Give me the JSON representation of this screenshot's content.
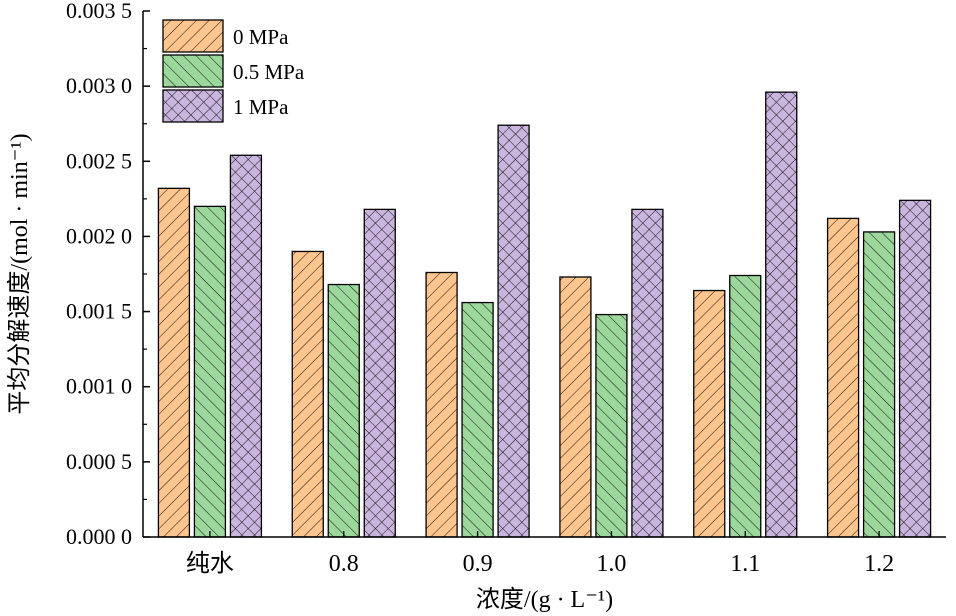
{
  "chart_data": {
    "type": "bar",
    "xlabel": "浓度/(g · L⁻¹)",
    "ylabel": "平均分解速度/(mol · min⁻¹)",
    "categories": [
      "纯水",
      "0.8",
      "0.9",
      "1.0",
      "1.1",
      "1.2"
    ],
    "ylim": [
      0,
      0.0035
    ],
    "yticks": [
      0,
      0.0005,
      0.001,
      0.0015,
      0.002,
      0.0025,
      0.003,
      0.0035
    ],
    "ytick_labels": [
      "0.000 0",
      "0.000 5",
      "0.001 0",
      "0.001 5",
      "0.002 0",
      "0.002 5",
      "0.003 0",
      "0.003 5"
    ],
    "grid": false,
    "legend_position": "top-left",
    "series": [
      {
        "name": "0 MPa",
        "values": [
          0.00232,
          0.0019,
          0.00176,
          0.00173,
          0.00164,
          0.00212
        ],
        "color": "#FFC58E",
        "hatch": "forward-diagonal"
      },
      {
        "name": "0.5 MPa",
        "values": [
          0.0022,
          0.00168,
          0.00156,
          0.00148,
          0.00174,
          0.00203
        ],
        "color": "#9CD79C",
        "hatch": "back-diagonal"
      },
      {
        "name": "1 MPa",
        "values": [
          0.00254,
          0.00218,
          0.00274,
          0.00218,
          0.00296,
          0.00224
        ],
        "color": "#C9B5DE",
        "hatch": "cross"
      }
    ]
  }
}
